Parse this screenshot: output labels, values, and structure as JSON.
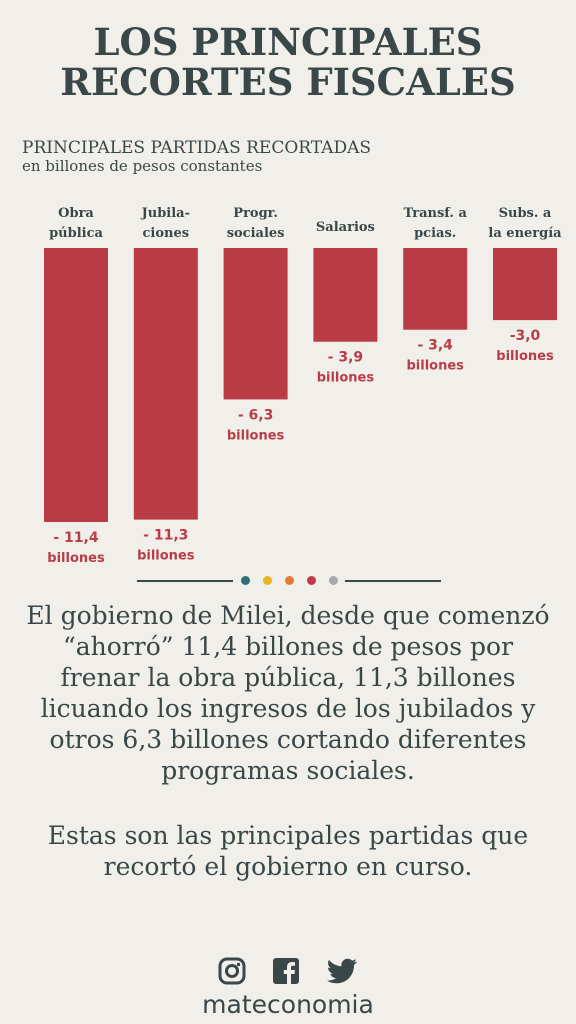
{
  "title": {
    "line1": "LOS PRINCIPALES",
    "line2": "RECORTES FISCALES"
  },
  "subtitle": {
    "line1": "PRINCIPALES PARTIDAS RECORTADAS",
    "line2": "en billones de pesos constantes"
  },
  "colors": {
    "bar": "#b93c47",
    "text": "#3a4748",
    "background": "#f1efea",
    "dots": [
      "#2b6f78",
      "#e9b51f",
      "#e07b32",
      "#c13a45",
      "#a9a9a9"
    ]
  },
  "chart_data": {
    "type": "bar",
    "title": "PRINCIPALES PARTIDAS RECORTADAS",
    "subtitle": "en billones de pesos constantes",
    "categories": [
      [
        "Obra",
        "pública"
      ],
      [
        "Jubila-",
        "ciones"
      ],
      [
        "Progr.",
        "sociales"
      ],
      [
        "Salarios"
      ],
      [
        "Transf. a",
        "pcias."
      ],
      [
        "Subs. a",
        "la energía"
      ]
    ],
    "values": [
      -11.4,
      -11.3,
      -6.3,
      -3.9,
      -3.4,
      -3.0
    ],
    "value_labels": [
      "- 11,4",
      "- 11,3",
      "- 6,3",
      "- 3,9",
      "- 3,4",
      "-3,0"
    ],
    "unit_label": "billones",
    "ylim": [
      -11.4,
      0
    ],
    "grid": false,
    "legend": "none"
  },
  "paragraph1": "El gobierno de Milei, desde que comenzó “ahorró” 11,4 billones de pesos por frenar la obra pública, 11,3 billones licuando los ingresos de los jubilados y otros 6,3 billones cortando diferentes programas sociales.",
  "paragraph2": "Estas son las principales partidas que recortó el gobierno en curso.",
  "footer": {
    "icons": [
      "instagram-icon",
      "facebook-icon",
      "twitter-icon"
    ],
    "brand": "mateconomia"
  }
}
